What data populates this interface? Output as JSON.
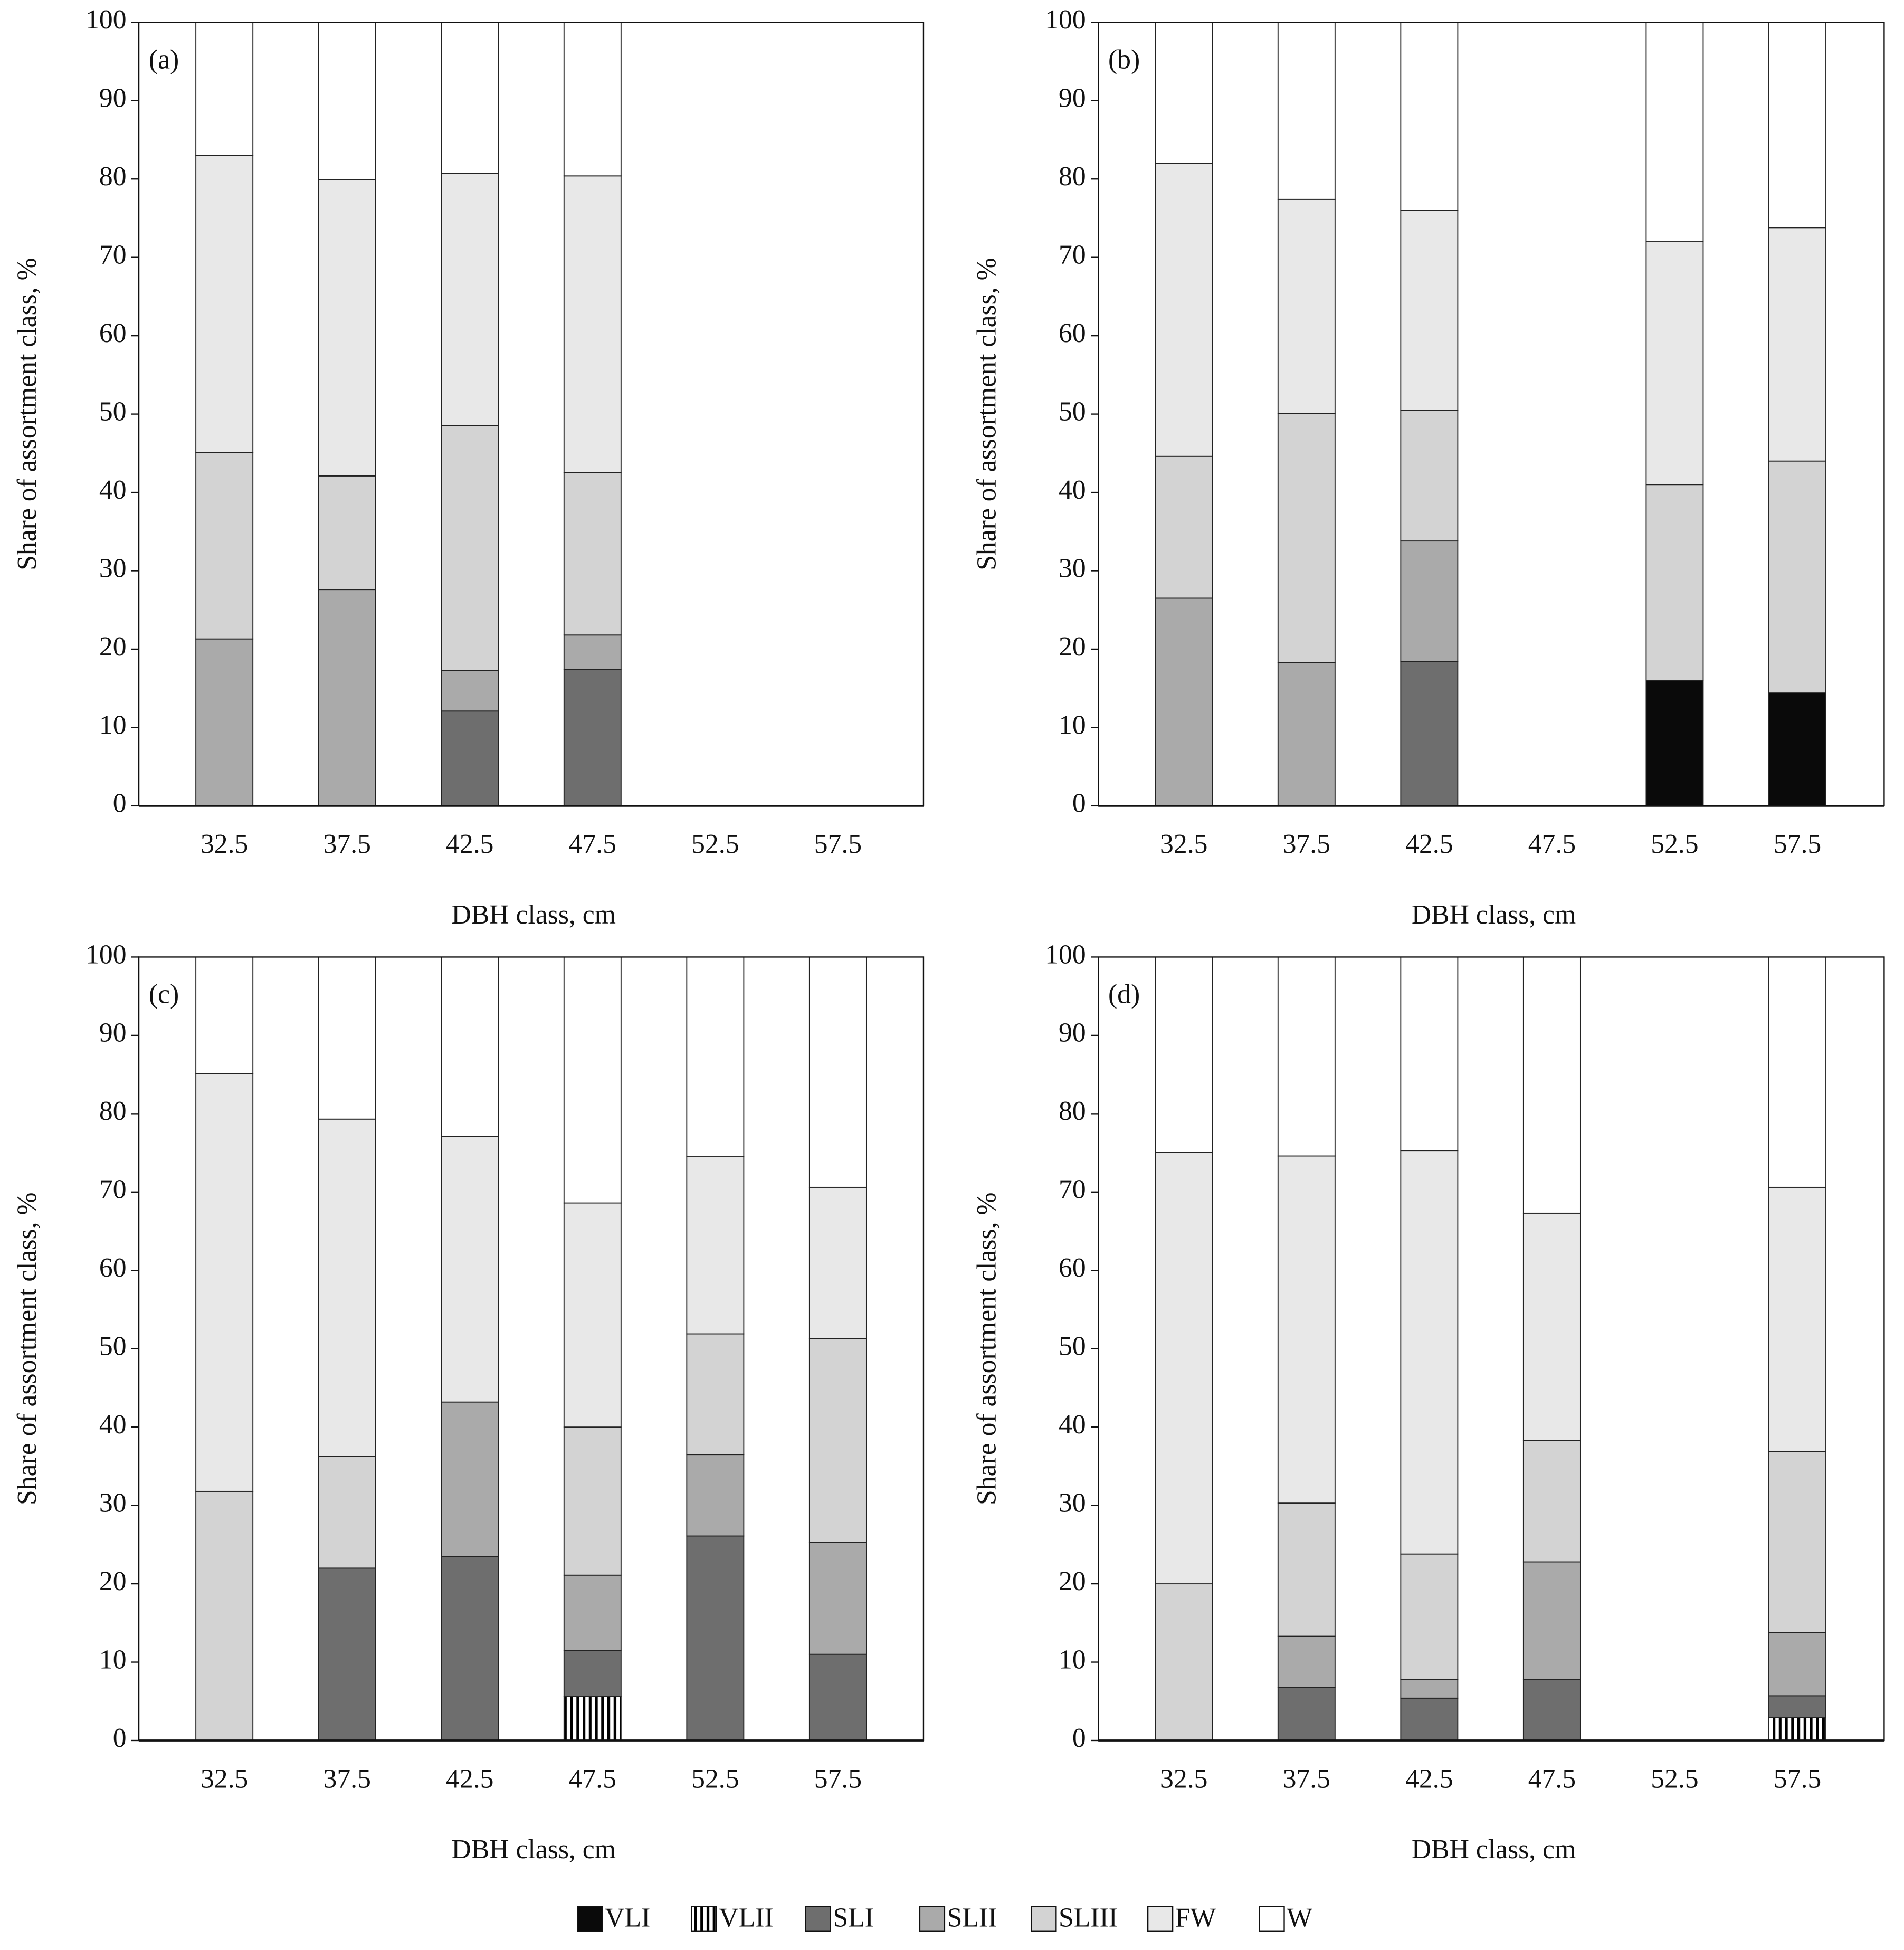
{
  "chart_data": [
    {
      "type": "bar",
      "stacked": true,
      "label": "(a)",
      "xlabel": "DBH class, cm",
      "ylabel": "Share of assortment class, %",
      "categories": [
        "32.5",
        "37.5",
        "42.5",
        "47.5",
        "52.5",
        "57.5"
      ],
      "ylim": [
        0,
        100
      ],
      "yticks": [
        0,
        10,
        20,
        30,
        40,
        50,
        60,
        70,
        80,
        90,
        100
      ],
      "series": [
        {
          "name": "VLI",
          "color": "#0a0a0a",
          "values": [
            0,
            0,
            0,
            0,
            0,
            0
          ]
        },
        {
          "name": "VLII",
          "color": "#000000",
          "pattern": "vertical-stripes",
          "values": [
            0,
            0,
            0,
            0,
            0,
            0
          ]
        },
        {
          "name": "SLI",
          "color": "#6e6e6e",
          "values": [
            0,
            0,
            12.1,
            17.4,
            0,
            0
          ]
        },
        {
          "name": "SLII",
          "color": "#aaaaaa",
          "values": [
            21.3,
            27.6,
            5.2,
            4.4,
            0,
            0
          ]
        },
        {
          "name": "SLIII",
          "color": "#d3d3d3",
          "values": [
            23.8,
            14.5,
            31.2,
            20.7,
            0,
            0
          ]
        },
        {
          "name": "FW",
          "color": "#e8e8e8",
          "values": [
            37.9,
            37.8,
            32.2,
            37.9,
            0,
            0
          ]
        },
        {
          "name": "W",
          "color": "#ffffff",
          "values": [
            17,
            20.1,
            19.3,
            19.6,
            0,
            0
          ]
        }
      ]
    },
    {
      "type": "bar",
      "stacked": true,
      "label": "(b)",
      "xlabel": "DBH class, cm",
      "ylabel": "Share of assortment class, %",
      "categories": [
        "32.5",
        "37.5",
        "42.5",
        "47.5",
        "52.5",
        "57.5"
      ],
      "ylim": [
        0,
        100
      ],
      "yticks": [
        0,
        10,
        20,
        30,
        40,
        50,
        60,
        70,
        80,
        90,
        100
      ],
      "series": [
        {
          "name": "VLI",
          "color": "#0a0a0a",
          "values": [
            0,
            0,
            0,
            0,
            16,
            14.4
          ]
        },
        {
          "name": "VLII",
          "color": "#000000",
          "pattern": "vertical-stripes",
          "values": [
            0,
            0,
            0,
            0,
            0,
            0
          ]
        },
        {
          "name": "SLI",
          "color": "#6e6e6e",
          "values": [
            0,
            0,
            18.4,
            0,
            0,
            0
          ]
        },
        {
          "name": "SLII",
          "color": "#aaaaaa",
          "values": [
            26.5,
            18.3,
            15.4,
            0,
            0,
            0
          ]
        },
        {
          "name": "SLIII",
          "color": "#d3d3d3",
          "values": [
            18.1,
            31.8,
            16.7,
            0,
            25,
            29.6
          ]
        },
        {
          "name": "FW",
          "color": "#e8e8e8",
          "values": [
            37.4,
            27.3,
            25.5,
            0,
            31,
            29.8
          ]
        },
        {
          "name": "W",
          "color": "#ffffff",
          "values": [
            18,
            22.6,
            24,
            0,
            28,
            26.2
          ]
        }
      ]
    },
    {
      "type": "bar",
      "stacked": true,
      "label": "(c)",
      "xlabel": "DBH class, cm",
      "ylabel": "Share of assortment class, %",
      "categories": [
        "32.5",
        "37.5",
        "42.5",
        "47.5",
        "52.5",
        "57.5"
      ],
      "ylim": [
        0,
        100
      ],
      "yticks": [
        0,
        10,
        20,
        30,
        40,
        50,
        60,
        70,
        80,
        90,
        100
      ],
      "series": [
        {
          "name": "VLI",
          "color": "#0a0a0a",
          "values": [
            0,
            0,
            0,
            0,
            0,
            0
          ]
        },
        {
          "name": "VLII",
          "color": "#000000",
          "pattern": "vertical-stripes",
          "values": [
            0,
            0,
            0,
            5.6,
            0,
            0
          ]
        },
        {
          "name": "SLI",
          "color": "#6e6e6e",
          "values": [
            0,
            22,
            23.5,
            5.9,
            26.1,
            11
          ]
        },
        {
          "name": "SLII",
          "color": "#aaaaaa",
          "values": [
            0,
            0,
            19.7,
            9.6,
            10.4,
            14.3
          ]
        },
        {
          "name": "SLIII",
          "color": "#d3d3d3",
          "values": [
            31.8,
            14.3,
            0,
            18.9,
            15.4,
            26
          ]
        },
        {
          "name": "FW",
          "color": "#e8e8e8",
          "values": [
            53.3,
            43,
            33.9,
            28.6,
            22.6,
            19.3
          ]
        },
        {
          "name": "W",
          "color": "#ffffff",
          "values": [
            14.9,
            20.7,
            22.9,
            31.4,
            25.5,
            29.4
          ]
        }
      ]
    },
    {
      "type": "bar",
      "stacked": true,
      "label": "(d)",
      "xlabel": "DBH class, cm",
      "ylabel": "Share of assortment class, %",
      "categories": [
        "32.5",
        "37.5",
        "42.5",
        "47.5",
        "52.5",
        "57.5"
      ],
      "ylim": [
        0,
        100
      ],
      "yticks": [
        0,
        10,
        20,
        30,
        40,
        50,
        60,
        70,
        80,
        90,
        100
      ],
      "series": [
        {
          "name": "VLI",
          "color": "#0a0a0a",
          "values": [
            0,
            0,
            0,
            0,
            0,
            0
          ]
        },
        {
          "name": "VLII",
          "color": "#000000",
          "pattern": "vertical-stripes",
          "values": [
            0,
            0,
            0,
            0,
            0,
            2.9
          ]
        },
        {
          "name": "SLI",
          "color": "#6e6e6e",
          "values": [
            0,
            6.8,
            5.4,
            7.8,
            0,
            2.8
          ]
        },
        {
          "name": "SLII",
          "color": "#aaaaaa",
          "values": [
            0,
            6.5,
            2.4,
            15,
            0,
            8.1
          ]
        },
        {
          "name": "SLIII",
          "color": "#d3d3d3",
          "values": [
            20,
            17,
            16,
            15.5,
            0,
            23.1
          ]
        },
        {
          "name": "FW",
          "color": "#e8e8e8",
          "values": [
            55.1,
            44.3,
            51.5,
            29,
            0,
            33.7
          ]
        },
        {
          "name": "W",
          "color": "#ffffff",
          "values": [
            24.9,
            25.4,
            24.7,
            32.7,
            0,
            29.4
          ]
        }
      ]
    }
  ]
}
